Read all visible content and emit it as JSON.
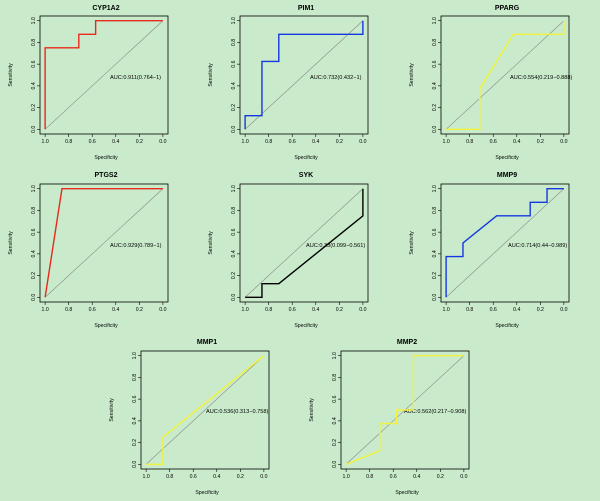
{
  "figure": {
    "background": "#c9ebcb",
    "axis_color": "#000000",
    "diagonal_color": "#8c8c8c",
    "xticks": [
      1.0,
      0.8,
      0.6,
      0.4,
      0.2,
      0.0
    ],
    "yticks": [
      0.0,
      0.2,
      0.4,
      0.6,
      0.8,
      1.0
    ]
  },
  "chart_data": [
    {
      "type": "line",
      "title": "CYP1A2",
      "xlabel": "Specificity",
      "ylabel": "Sensitivity",
      "xlim": [
        1.0,
        0.0
      ],
      "ylim": [
        0.0,
        1.0
      ],
      "x_reversed": true,
      "color": "#e8291b",
      "auc_label": "AUC:0.911(0.764−1)",
      "x": [
        1.0,
        1.0,
        0.714,
        0.714,
        0.571,
        0.571,
        0.0
      ],
      "y": [
        0.0,
        0.75,
        0.75,
        0.875,
        0.875,
        1.0,
        1.0
      ]
    },
    {
      "type": "line",
      "title": "PIM1",
      "xlabel": "Specificity",
      "ylabel": "Sensitivity",
      "xlim": [
        1.0,
        0.0
      ],
      "ylim": [
        0.0,
        1.0
      ],
      "x_reversed": true,
      "color": "#1537e0",
      "auc_label": "AUC:0.732(0.432−1)",
      "x": [
        1.0,
        1.0,
        0.857,
        0.857,
        0.714,
        0.714,
        0.0,
        0.0
      ],
      "y": [
        0.0,
        0.125,
        0.125,
        0.625,
        0.625,
        0.875,
        0.875,
        1.0
      ]
    },
    {
      "type": "line",
      "title": "PPARG",
      "xlabel": "Specificity",
      "ylabel": "Sensitivity",
      "xlim": [
        1.0,
        0.0
      ],
      "ylim": [
        0.0,
        1.0
      ],
      "x_reversed": true,
      "color": "#f2f23a",
      "auc_label": "AUC:0.554(0.219−0.888)",
      "x": [
        1.0,
        0.714,
        0.714,
        0.429,
        0.0,
        0.0
      ],
      "y": [
        0.0,
        0.0,
        0.375,
        0.875,
        0.875,
        1.0
      ]
    },
    {
      "type": "line",
      "title": "PTGS2",
      "xlabel": "Specificity",
      "ylabel": "Sensitivity",
      "xlim": [
        1.0,
        0.0
      ],
      "ylim": [
        0.0,
        1.0
      ],
      "x_reversed": true,
      "color": "#e8291b",
      "auc_label": "AUC:0.929(0.789−1)",
      "x": [
        1.0,
        0.857,
        0.0
      ],
      "y": [
        0.0,
        1.0,
        1.0
      ]
    },
    {
      "type": "line",
      "title": "SYK",
      "xlabel": "Specificity",
      "ylabel": "Sensitivity",
      "xlim": [
        1.0,
        0.0
      ],
      "ylim": [
        0.0,
        1.0
      ],
      "x_reversed": true,
      "color": "#000000",
      "auc_label": "AUC:0.33(0.099−0.561)",
      "x": [
        1.0,
        0.857,
        0.857,
        0.714,
        0.0,
        0.0
      ],
      "y": [
        0.0,
        0.0,
        0.125,
        0.125,
        0.75,
        1.0
      ]
    },
    {
      "type": "line",
      "title": "MMP9",
      "xlabel": "Specificity",
      "ylabel": "Sensitivity",
      "xlim": [
        1.0,
        0.0
      ],
      "ylim": [
        0.0,
        1.0
      ],
      "x_reversed": true,
      "color": "#1537e0",
      "auc_label": "AUC:0.714(0.44−0.989)",
      "x": [
        1.0,
        1.0,
        0.857,
        0.857,
        0.571,
        0.286,
        0.286,
        0.143,
        0.143,
        0.0
      ],
      "y": [
        0.0,
        0.375,
        0.375,
        0.5,
        0.75,
        0.75,
        0.875,
        0.875,
        1.0,
        1.0
      ]
    },
    {
      "type": "line",
      "title": "MMP1",
      "xlabel": "Specificity",
      "ylabel": "Sensitivity",
      "xlim": [
        1.0,
        0.0
      ],
      "ylim": [
        0.0,
        1.0
      ],
      "x_reversed": true,
      "color": "#f2f23a",
      "auc_label": "AUC:0.536(0.313−0.758)",
      "x": [
        1.0,
        0.857,
        0.857,
        0.0
      ],
      "y": [
        0.0,
        0.0,
        0.25,
        1.0
      ]
    },
    {
      "type": "line",
      "title": "MMP2",
      "xlabel": "Specificity",
      "ylabel": "Sensitivity",
      "xlim": [
        1.0,
        0.0
      ],
      "ylim": [
        0.0,
        1.0
      ],
      "x_reversed": true,
      "color": "#f2f23a",
      "auc_label": "AUC:0.562(0.217−0.908)",
      "x": [
        1.0,
        0.714,
        0.714,
        0.571,
        0.571,
        0.429,
        0.429,
        0.0
      ],
      "y": [
        0.0,
        0.125,
        0.375,
        0.375,
        0.5,
        0.5,
        1.0,
        1.0
      ]
    }
  ]
}
